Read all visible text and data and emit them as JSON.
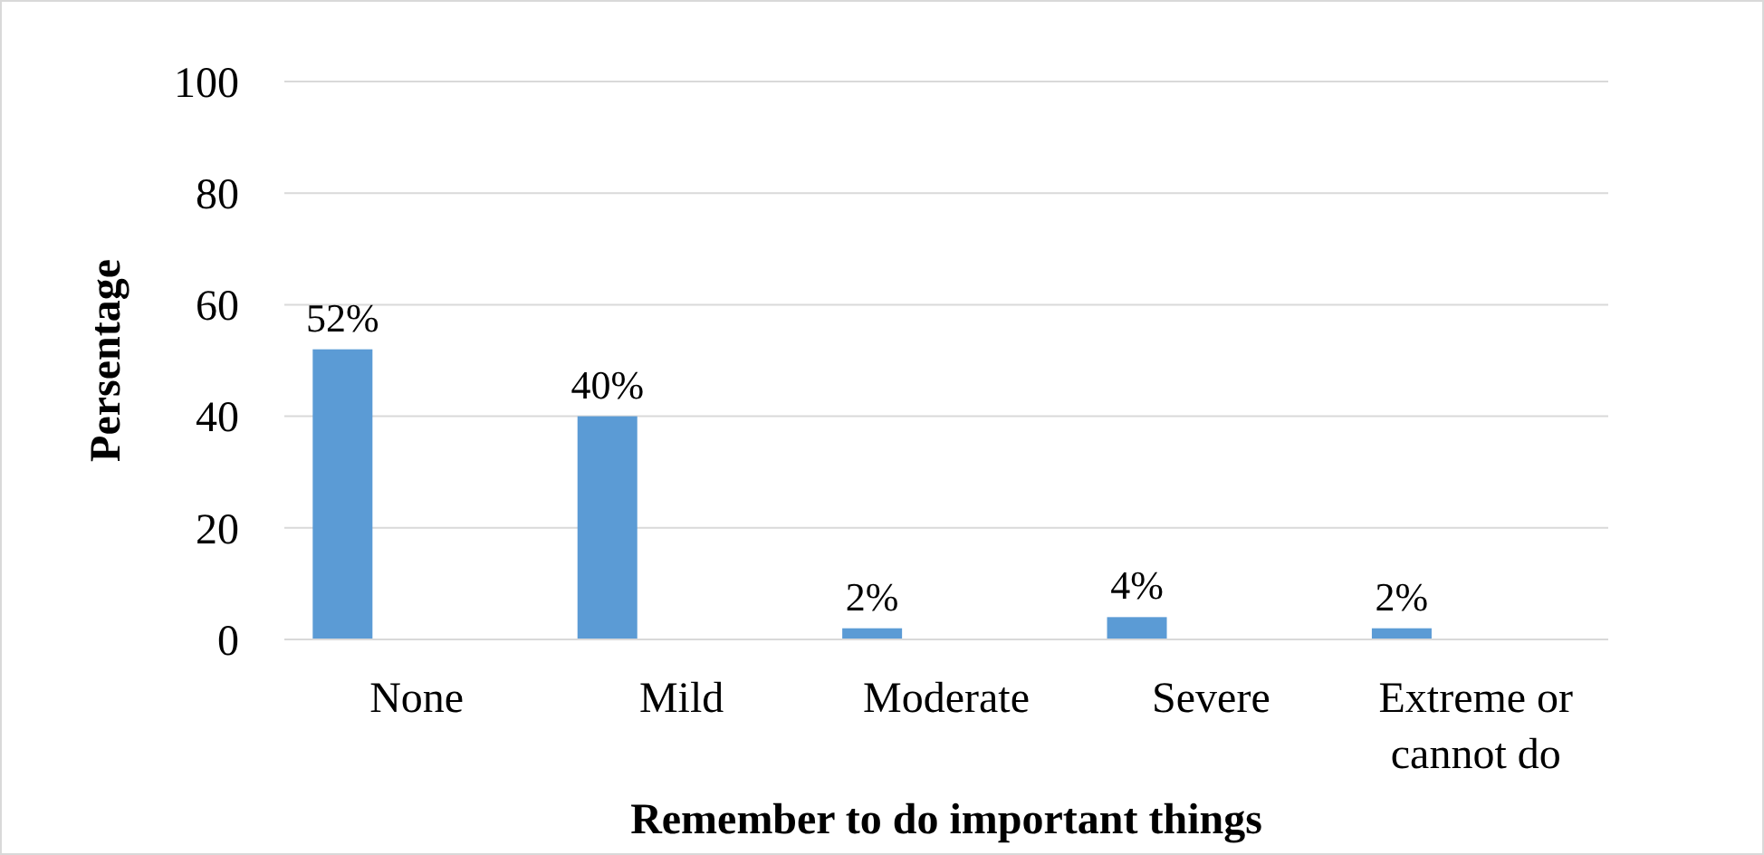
{
  "chart_data": {
    "type": "bar",
    "xlabel": "Remember to do important things",
    "ylabel": "Persentage",
    "categories": [
      "None",
      "Mild",
      "Moderate",
      "Severe",
      "Extreme or cannot do"
    ],
    "values": [
      52,
      40,
      2,
      4,
      2
    ],
    "value_labels": [
      "52%",
      "40%",
      "2%",
      "4%",
      "2%"
    ],
    "color": "#5b9bd5",
    "ylim": [
      0,
      100
    ],
    "yticks": [
      0,
      20,
      40,
      60,
      80,
      100
    ],
    "grid": "y"
  }
}
